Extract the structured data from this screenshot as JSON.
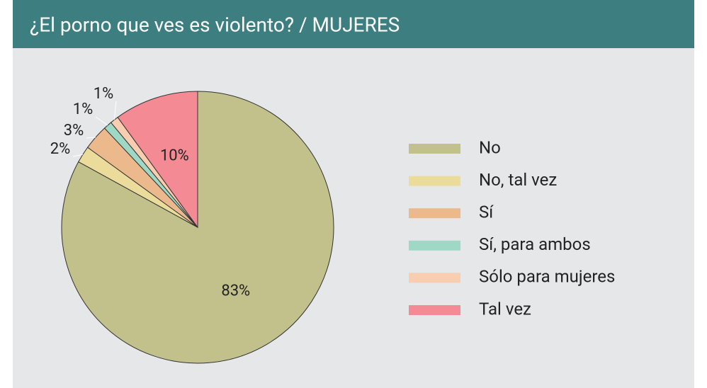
{
  "chart_data": {
    "type": "pie",
    "title": "¿El porno que ves es violento? / MUJERES",
    "categories": [
      "No",
      "No, tal vez",
      "Sí",
      "Sí, para ambos",
      "Sólo para mujeres",
      "Tal vez"
    ],
    "values": [
      83,
      2,
      3,
      1,
      1,
      10
    ],
    "value_labels": [
      "83%",
      "2%",
      "3%",
      "1%",
      "1%",
      "10%"
    ],
    "colors": [
      "#c2c18c",
      "#ecdc9b",
      "#ebb98c",
      "#9fd8c5",
      "#f9cdb0",
      "#f48a94"
    ],
    "legend": "right"
  }
}
